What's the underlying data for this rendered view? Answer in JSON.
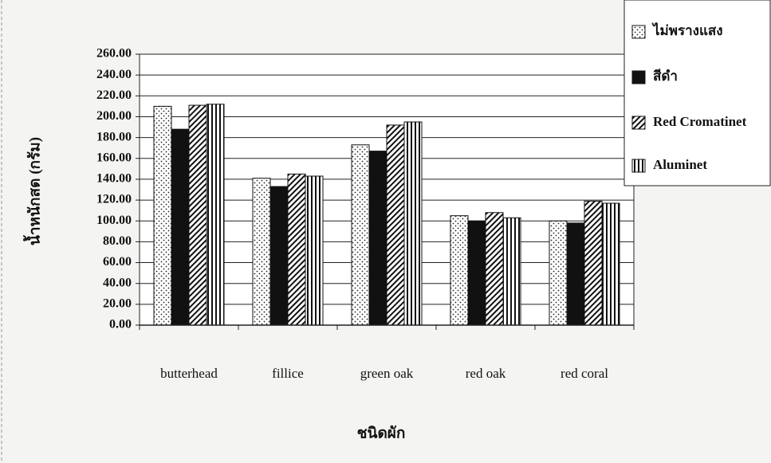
{
  "chart_data": {
    "type": "bar",
    "x_label": "ชนิดผัก",
    "y_label": "น้ำหนักสด (กรัม)",
    "categories": [
      "butterhead",
      "fillice",
      "green oak",
      "red oak",
      "red coral"
    ],
    "series": [
      {
        "name": "ไม่พรางแสง",
        "color": "#ffffff",
        "pattern": "dots",
        "values": [
          210,
          141,
          173,
          105,
          100
        ]
      },
      {
        "name": "สีดำ",
        "color": "#111111",
        "pattern": "solid",
        "values": [
          188,
          133,
          167,
          100,
          98
        ]
      },
      {
        "name": "Red Cromatinet",
        "color": "#ffffff",
        "pattern": "diagonal",
        "values": [
          211,
          145,
          192,
          108,
          119
        ]
      },
      {
        "name": "Aluminet",
        "color": "#ffffff",
        "pattern": "vertical",
        "values": [
          212,
          143,
          195,
          103,
          117
        ]
      }
    ],
    "ylim": [
      0,
      260
    ],
    "yticks": [
      {
        "value": 0,
        "label": "0.00"
      },
      {
        "value": 20,
        "label": "20.00"
      },
      {
        "value": 40,
        "label": "40.00"
      },
      {
        "value": 60,
        "label": "60.00"
      },
      {
        "value": 80,
        "label": "80.00"
      },
      {
        "value": 100,
        "label": "100.00"
      },
      {
        "value": 120,
        "label": "120.00"
      },
      {
        "value": 140,
        "label": "140.00"
      },
      {
        "value": 160,
        "label": "160.00"
      },
      {
        "value": 180,
        "label": "180.00"
      },
      {
        "value": 200,
        "label": "200.00"
      },
      {
        "value": 220,
        "label": "220.00"
      },
      {
        "value": 240,
        "label": "240.00"
      },
      {
        "value": 260,
        "label": "260.00"
      }
    ],
    "grid": true,
    "legend": "top-right"
  }
}
